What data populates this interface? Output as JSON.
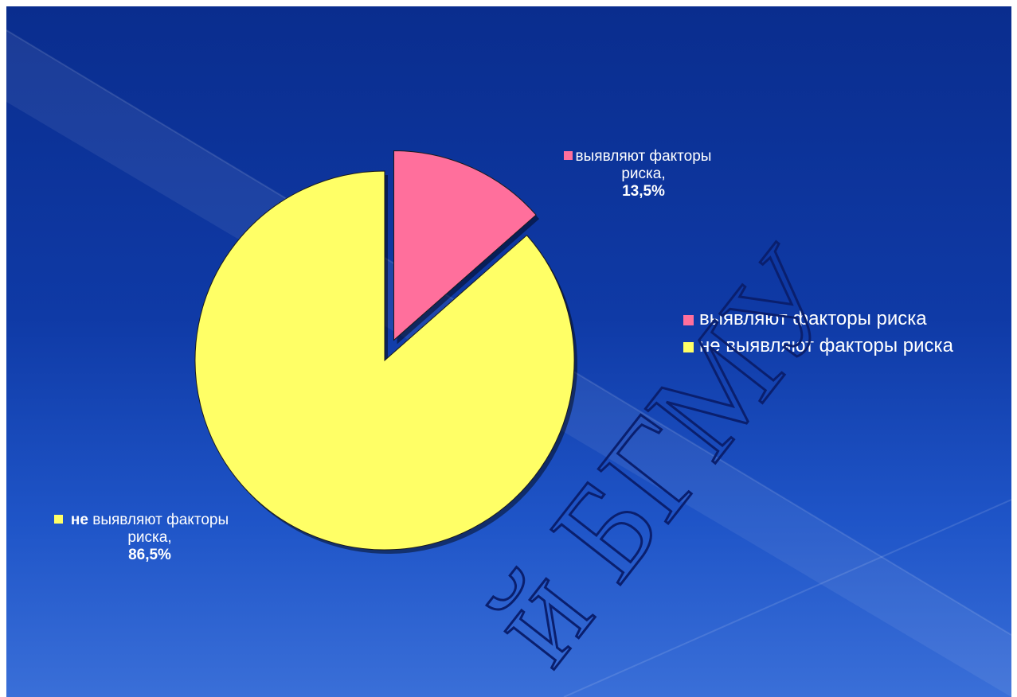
{
  "chart_data": {
    "type": "pie",
    "categories": [
      "выявляют факторы риска",
      "не выявляют факторы риска"
    ],
    "values": [
      13.5,
      86.5
    ],
    "colors": [
      "#ff6f9c",
      "#ffff66"
    ],
    "exploded": [
      true,
      false
    ],
    "legend_position": "right",
    "data_labels": [
      {
        "prefix_bold": "",
        "text": "выявляют факторы риска,",
        "value": "13,5%"
      },
      {
        "prefix_bold": "не",
        "text": "выявляют факторы риска,",
        "value": "86,5%"
      }
    ],
    "legend": [
      {
        "label": "выявляют факторы риска",
        "color": "#ff6f9c"
      },
      {
        "label": "не выявляют факторы риска",
        "color": "#ffff66"
      }
    ]
  },
  "watermark": {
    "text": "й БГМУ",
    "color": "#0a1f6e"
  }
}
